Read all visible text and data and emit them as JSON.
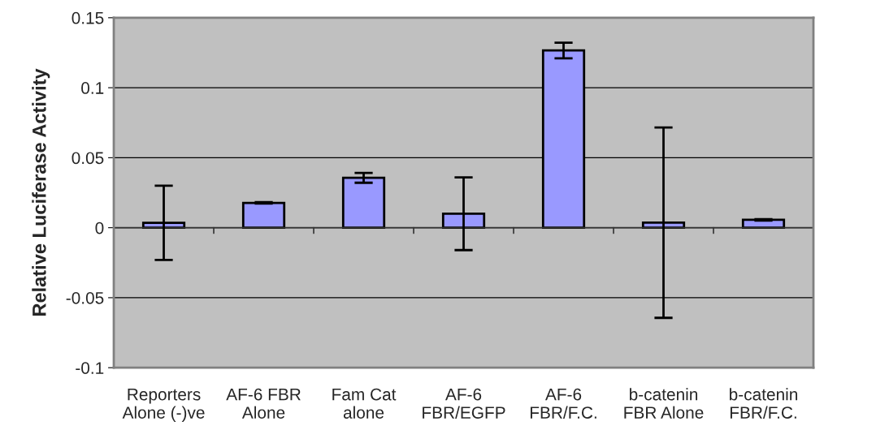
{
  "chart_data": {
    "type": "bar",
    "ylabel": "Relative Luciferase Activity",
    "categories": [
      "Reporters\nAlone (-)ve",
      "AF-6 FBR\nAlone",
      "Fam Cat\nalone",
      "AF-6\nFBR/EGFP",
      "AF-6\nFBR/F.C.",
      "b-catenin\nFBR Alone",
      "b-catenin\nFBR/F.C."
    ],
    "values": [
      0.0035,
      0.0177,
      0.0356,
      0.01,
      0.1266,
      0.0036,
      0.0056
    ],
    "errors": [
      0.0265,
      0.0005,
      0.0035,
      0.026,
      0.0056,
      0.068,
      0.0005
    ],
    "color": "#9999ff",
    "ylim": [
      -0.1,
      0.15
    ],
    "yticks": [
      -0.1,
      -0.05,
      0,
      0.05,
      0.1,
      0.15
    ],
    "grid": "y",
    "legend": false
  }
}
